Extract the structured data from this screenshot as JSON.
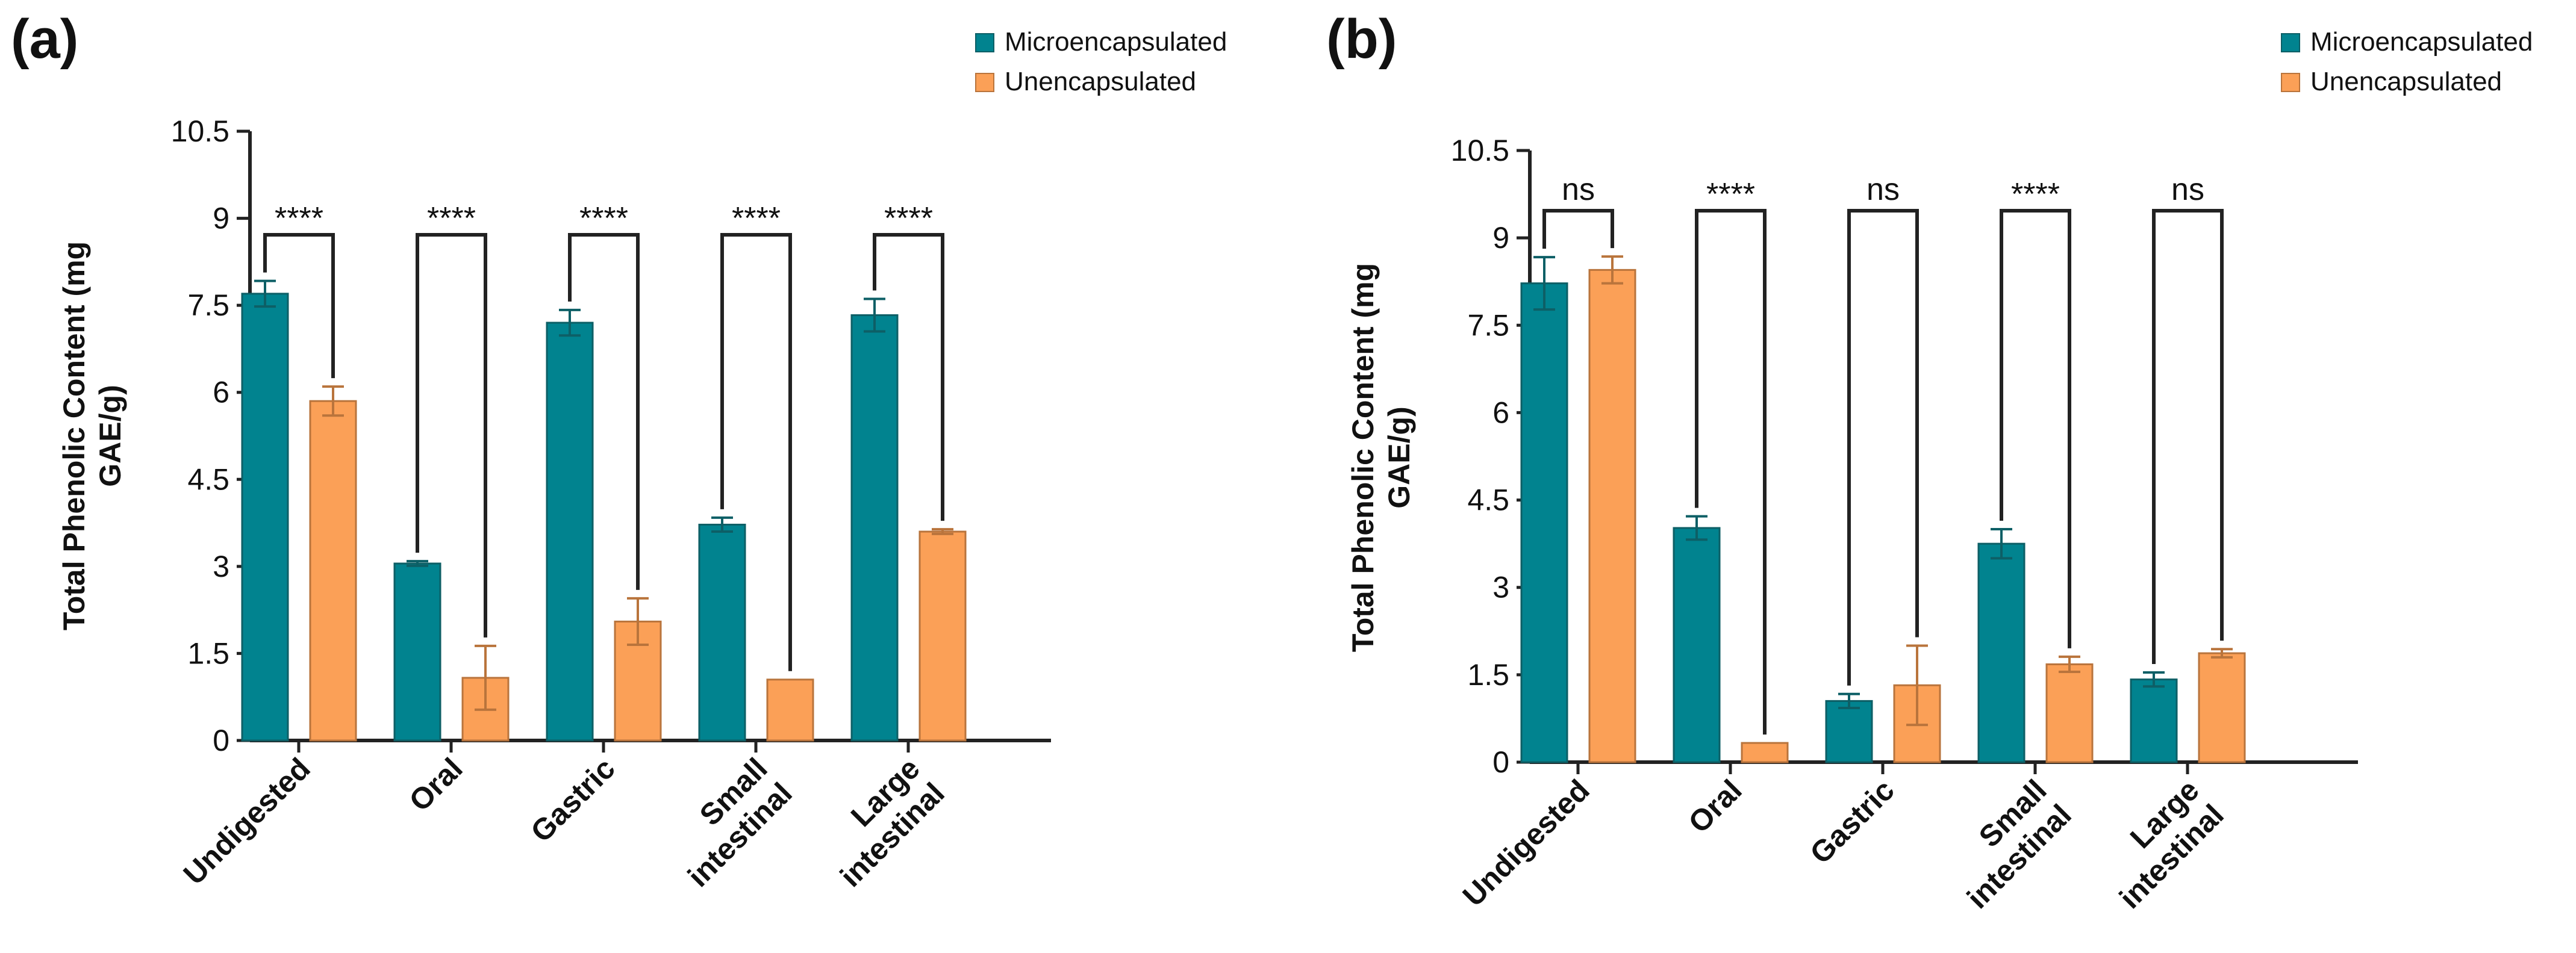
{
  "colors": {
    "microencapsulated": "#01838f",
    "unencapsulated": "#fba057",
    "micro_edge": "#0d5f66",
    "unenc_edge": "#b9743c"
  },
  "chart_data": [
    {
      "type": "bar",
      "panel_label": "(a)",
      "ylabel": "Total Phenolic Content (mg GAE/g)",
      "ylabel_lines": [
        "Total Phenolic Content (mg",
        "GAE/g)"
      ],
      "ylim": [
        0,
        10.5
      ],
      "yticks": [
        0,
        1.5,
        3,
        4.5,
        6,
        7.5,
        9,
        10.5
      ],
      "ytick_labels": [
        "0",
        "1.5",
        "3",
        "4.5",
        "6",
        "7.5",
        "9",
        "10.5"
      ],
      "categories": [
        "Undigested",
        "Oral",
        "Gastric",
        "Small intestinal",
        "Large intestinal"
      ],
      "category_lines": [
        [
          "Undigested"
        ],
        [
          "Oral"
        ],
        [
          "Gastric"
        ],
        [
          "Small",
          "intestinal"
        ],
        [
          "Large",
          "intestinal"
        ]
      ],
      "legend": [
        "Microencapsulated",
        "Unencapsulated"
      ],
      "series": [
        {
          "name": "Microencapsulated",
          "values": [
            7.7,
            3.05,
            7.2,
            3.72,
            7.33
          ],
          "errors": [
            0.22,
            0.04,
            0.22,
            0.12,
            0.28
          ]
        },
        {
          "name": "Unencapsulated",
          "values": [
            5.85,
            1.08,
            2.05,
            1.05,
            3.6
          ],
          "errors": [
            0.25,
            0.55,
            0.4,
            0.0,
            0.04
          ]
        }
      ],
      "significance": [
        "****",
        "****",
        "****",
        "****",
        "****"
      ]
    },
    {
      "type": "bar",
      "panel_label": "(b)",
      "ylabel": "Total Phenolic Content (mg GAE/g)",
      "ylabel_lines": [
        "Total Phenolic Content (mg",
        "GAE/g)"
      ],
      "ylim": [
        0,
        10.5
      ],
      "yticks": [
        0,
        1.5,
        3,
        4.5,
        6,
        7.5,
        9,
        10.5
      ],
      "ytick_labels": [
        "0",
        "1.5",
        "3",
        "4.5",
        "6",
        "7.5",
        "9",
        "10.5"
      ],
      "categories": [
        "Undigested",
        "Oral",
        "Gastric",
        "Small intestinal",
        "Large intestinal"
      ],
      "category_lines": [
        [
          "Undigested"
        ],
        [
          "Oral"
        ],
        [
          "Gastric"
        ],
        [
          "Small",
          "intestinal"
        ],
        [
          "Large",
          "intestinal"
        ]
      ],
      "legend": [
        "Microencapsulated",
        "Unencapsulated"
      ],
      "series": [
        {
          "name": "Microencapsulated",
          "values": [
            8.22,
            4.02,
            1.05,
            3.75,
            1.42
          ],
          "errors": [
            0.45,
            0.2,
            0.12,
            0.25,
            0.12
          ]
        },
        {
          "name": "Unencapsulated",
          "values": [
            8.45,
            0.33,
            1.32,
            1.68,
            1.87
          ],
          "errors": [
            0.23,
            0.0,
            0.68,
            0.13,
            0.07
          ]
        }
      ],
      "significance": [
        "ns",
        "****",
        "ns",
        "****",
        "ns"
      ]
    }
  ]
}
